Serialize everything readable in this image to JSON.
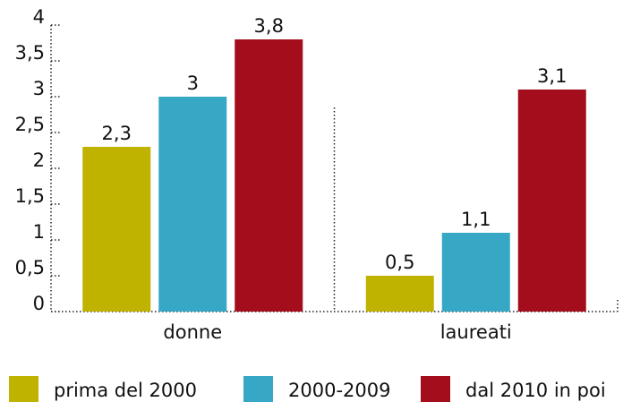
{
  "chart_data": {
    "type": "bar",
    "categories": [
      "donne",
      "laureati"
    ],
    "series": [
      {
        "name": "prima del 2000",
        "color": "#bfb300",
        "values": [
          2.3,
          0.5
        ],
        "value_labels": [
          "2,3",
          "0,5"
        ]
      },
      {
        "name": "2000-2009",
        "color": "#36a7c4",
        "values": [
          3,
          1.1
        ],
        "value_labels": [
          "3",
          "1,1"
        ]
      },
      {
        "name": "dal 2010 in poi",
        "color": "#a30d1c",
        "values": [
          3.8,
          3.1
        ],
        "value_labels": [
          "3,8",
          "3,1"
        ]
      }
    ],
    "ylim": [
      0,
      4
    ],
    "yticks": [
      0,
      {
        "value": 0.5,
        "label": "0,5"
      },
      1,
      {
        "value": 1.5,
        "label": "1,5"
      },
      2,
      {
        "value": 2.5,
        "label": "2,5"
      },
      3,
      {
        "value": 3.5,
        "label": "3,5"
      },
      4
    ],
    "legend": "bottom"
  }
}
